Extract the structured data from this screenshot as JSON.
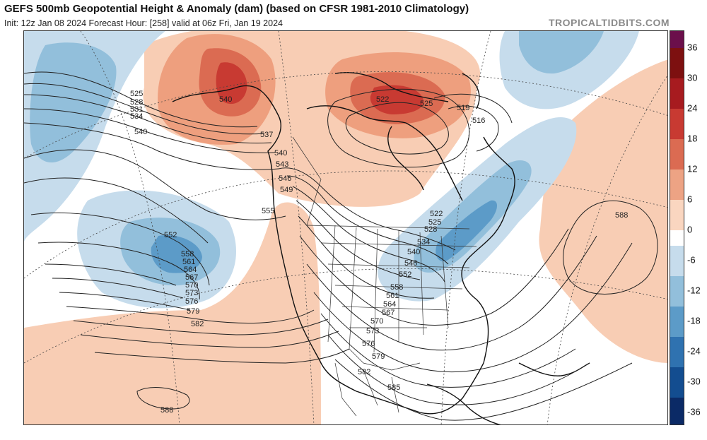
{
  "header": {
    "title": "GEFS 500mb Geopotential Height & Anomaly (dam) (based on CFSR 1981-2010 Climatology)",
    "subtitle": "Init: 12z Jan 08 2024   Forecast Hour: [258]   valid at 06z Fri, Jan 19 2024",
    "brand": "TROPICALTIDBITS.COM"
  },
  "colorbar": {
    "labels": [
      "36",
      "30",
      "24",
      "18",
      "12",
      "6",
      "0",
      "-6",
      "-12",
      "-18",
      "-24",
      "-30",
      "-36"
    ],
    "colors": [
      "#6b0f4b",
      "#7d1010",
      "#a71b1f",
      "#c83a32",
      "#db6b52",
      "#eda384",
      "#fad6c0",
      "#ffffff",
      "#c6dcec",
      "#92bfdb",
      "#5c9bc8",
      "#2f72b0",
      "#134d90",
      "#0b2a66"
    ]
  },
  "contour_labels": {
    "west": [
      "525",
      "528",
      "531",
      "534",
      "540"
    ],
    "pacific_low": [
      "552",
      "558",
      "561",
      "564",
      "567",
      "570",
      "573",
      "576",
      "579",
      "582"
    ],
    "alaska": [
      "540",
      "537",
      "540",
      "543",
      "546",
      "549",
      "555"
    ],
    "canada": [
      "522",
      "525",
      "519",
      "516"
    ],
    "east_trough": [
      "522",
      "525",
      "528",
      "534",
      "540",
      "546",
      "552"
    ],
    "conus": [
      "558",
      "561",
      "564",
      "567",
      "570",
      "573",
      "576",
      "579",
      "582",
      "585"
    ],
    "atlantic": [
      "588"
    ],
    "south_pacific": [
      "588"
    ]
  }
}
